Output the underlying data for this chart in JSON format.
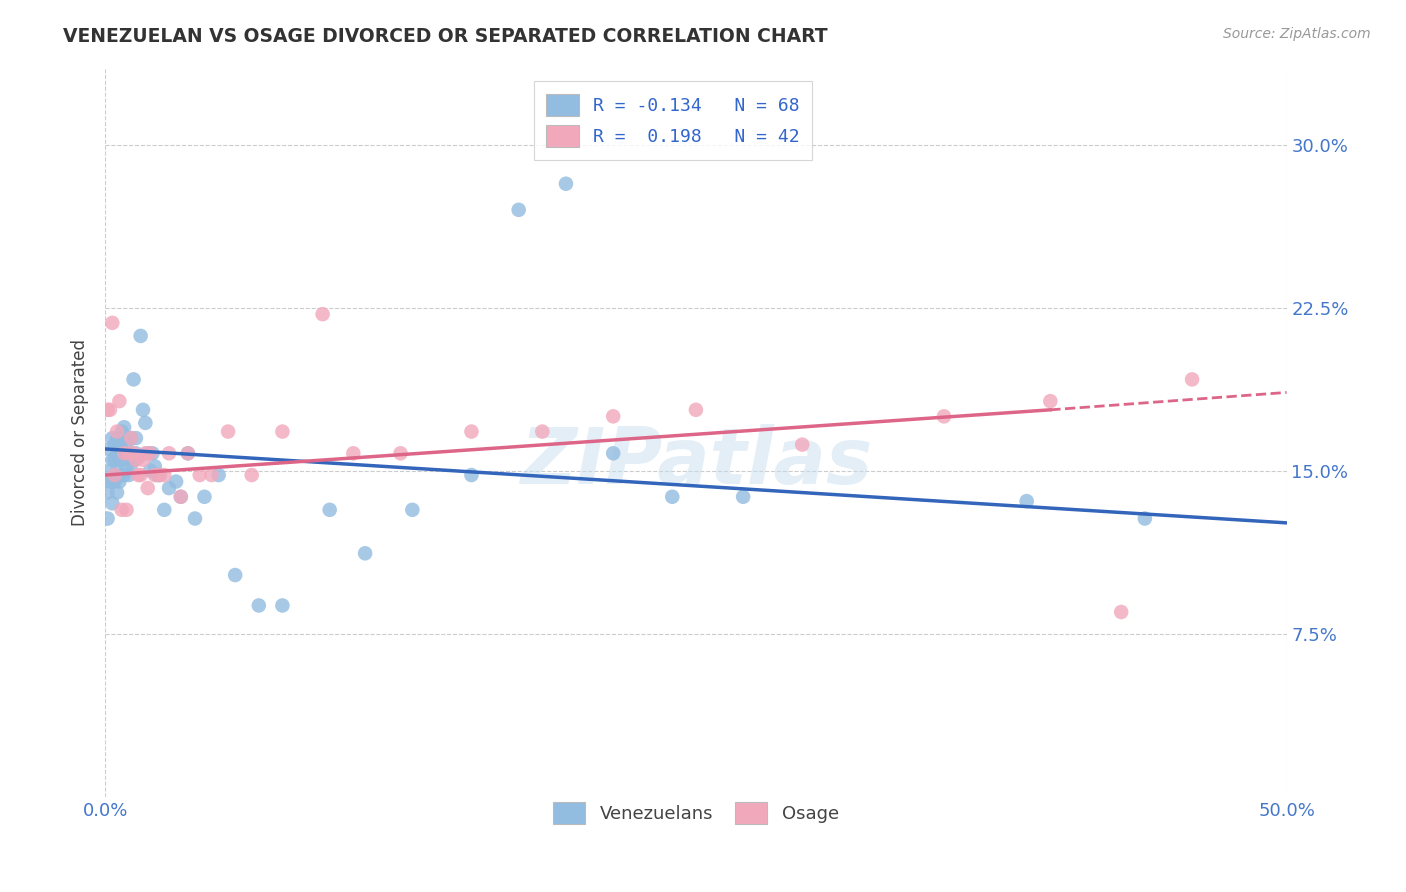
{
  "title": "VENEZUELAN VS OSAGE DIVORCED OR SEPARATED CORRELATION CHART",
  "source": "Source: ZipAtlas.com",
  "ylabel": "Divorced or Separated",
  "ytick_labels": [
    "7.5%",
    "15.0%",
    "22.5%",
    "30.0%"
  ],
  "ytick_values": [
    0.075,
    0.15,
    0.225,
    0.3
  ],
  "xlim": [
    0.0,
    0.5
  ],
  "ylim": [
    0.0,
    0.335
  ],
  "legend_label1": "R = -0.134   N = 68",
  "legend_label2": "R =  0.198   N = 42",
  "legend_group1": "Venezuelans",
  "legend_group2": "Osage",
  "color_blue": "#92bce0",
  "color_pink": "#f2a8bb",
  "line_color_blue": "#3366bb",
  "line_color_pink": "#dd6688",
  "watermark": "ZIPatlas",
  "background_color": "#ffffff",
  "grid_color": "#cccccc",
  "venezuelan_x": [
    0.001,
    0.001,
    0.002,
    0.002,
    0.002,
    0.003,
    0.003,
    0.003,
    0.003,
    0.004,
    0.004,
    0.004,
    0.005,
    0.005,
    0.005,
    0.005,
    0.006,
    0.006,
    0.006,
    0.007,
    0.007,
    0.007,
    0.007,
    0.008,
    0.008,
    0.008,
    0.009,
    0.009,
    0.01,
    0.01,
    0.011,
    0.011,
    0.012,
    0.012,
    0.013,
    0.013,
    0.014,
    0.015,
    0.016,
    0.017,
    0.018,
    0.019,
    0.02,
    0.021,
    0.022,
    0.023,
    0.025,
    0.027,
    0.03,
    0.032,
    0.035,
    0.038,
    0.042,
    0.048,
    0.055,
    0.065,
    0.075,
    0.095,
    0.11,
    0.13,
    0.155,
    0.175,
    0.195,
    0.215,
    0.24,
    0.27,
    0.39,
    0.44
  ],
  "venezuelan_y": [
    0.128,
    0.14,
    0.145,
    0.15,
    0.16,
    0.135,
    0.145,
    0.155,
    0.165,
    0.145,
    0.155,
    0.162,
    0.14,
    0.15,
    0.158,
    0.165,
    0.145,
    0.155,
    0.162,
    0.148,
    0.155,
    0.16,
    0.168,
    0.148,
    0.158,
    0.17,
    0.152,
    0.162,
    0.148,
    0.158,
    0.153,
    0.165,
    0.192,
    0.155,
    0.158,
    0.165,
    0.156,
    0.212,
    0.178,
    0.172,
    0.158,
    0.15,
    0.158,
    0.152,
    0.148,
    0.148,
    0.132,
    0.142,
    0.145,
    0.138,
    0.158,
    0.128,
    0.138,
    0.148,
    0.102,
    0.088,
    0.088,
    0.132,
    0.112,
    0.132,
    0.148,
    0.27,
    0.282,
    0.158,
    0.138,
    0.138,
    0.136,
    0.128
  ],
  "osage_x": [
    0.001,
    0.002,
    0.003,
    0.004,
    0.005,
    0.006,
    0.007,
    0.008,
    0.009,
    0.01,
    0.011,
    0.012,
    0.013,
    0.014,
    0.015,
    0.016,
    0.017,
    0.018,
    0.019,
    0.021,
    0.023,
    0.025,
    0.027,
    0.032,
    0.035,
    0.04,
    0.045,
    0.052,
    0.062,
    0.075,
    0.092,
    0.105,
    0.125,
    0.155,
    0.185,
    0.215,
    0.25,
    0.295,
    0.355,
    0.4,
    0.43,
    0.46
  ],
  "osage_y": [
    0.178,
    0.178,
    0.218,
    0.148,
    0.168,
    0.182,
    0.132,
    0.158,
    0.132,
    0.158,
    0.165,
    0.158,
    0.155,
    0.148,
    0.148,
    0.155,
    0.158,
    0.142,
    0.158,
    0.148,
    0.148,
    0.148,
    0.158,
    0.138,
    0.158,
    0.148,
    0.148,
    0.168,
    0.148,
    0.168,
    0.222,
    0.158,
    0.158,
    0.168,
    0.168,
    0.175,
    0.178,
    0.162,
    0.175,
    0.182,
    0.085,
    0.192
  ],
  "line_blue_x0": 0.0,
  "line_blue_y0": 0.16,
  "line_blue_x1": 0.5,
  "line_blue_y1": 0.126,
  "line_pink_x0": 0.0,
  "line_pink_y0": 0.148,
  "line_pink_x1_solid": 0.4,
  "line_pink_y1_solid": 0.178,
  "line_pink_x1_dash": 0.5,
  "line_pink_y1_dash": 0.186
}
